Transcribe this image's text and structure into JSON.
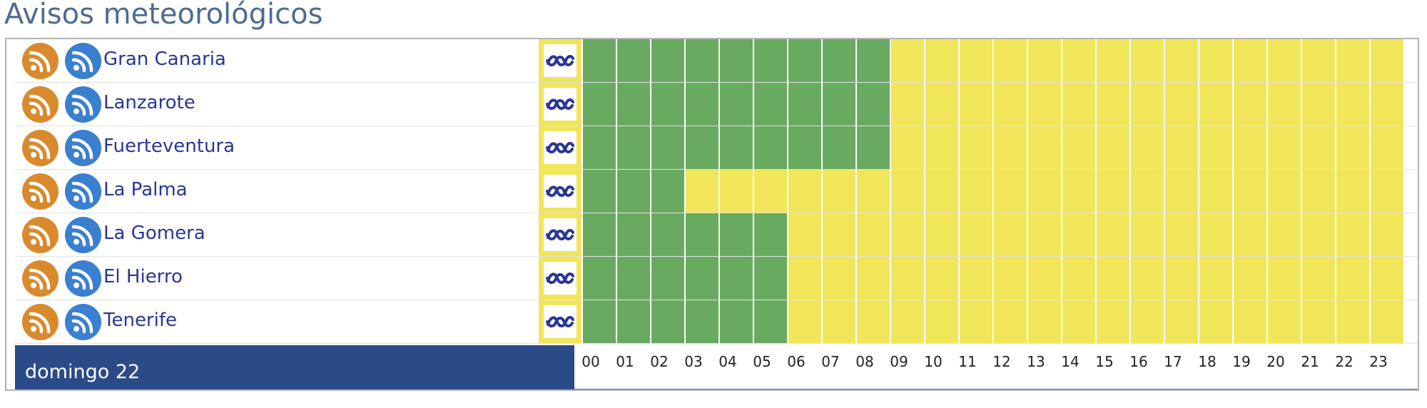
{
  "title": "Avisos meteorológicos",
  "colors": {
    "rss_orange": "#d98a2c",
    "rss_blue": "#3a7fd0",
    "level_green": "#69aa61",
    "level_yellow": "#f1e65a",
    "day_bar": "#2b4a88",
    "island_link": "#2a3598"
  },
  "icons": {
    "rss_primary": "rss-feed-icon",
    "rss_secondary": "rss-feed-icon",
    "coastal": "coastal-wave-icon"
  },
  "hours": [
    "00",
    "01",
    "02",
    "03",
    "04",
    "05",
    "06",
    "07",
    "08",
    "09",
    "10",
    "11",
    "12",
    "13",
    "14",
    "15",
    "16",
    "17",
    "18",
    "19",
    "20",
    "21",
    "22",
    "23"
  ],
  "day_label": "domingo 22",
  "islands": [
    {
      "name": "Gran Canaria",
      "levels": [
        "green",
        "green",
        "green",
        "green",
        "green",
        "green",
        "green",
        "green",
        "green",
        "yellow",
        "yellow",
        "yellow",
        "yellow",
        "yellow",
        "yellow",
        "yellow",
        "yellow",
        "yellow",
        "yellow",
        "yellow",
        "yellow",
        "yellow",
        "yellow",
        "yellow"
      ]
    },
    {
      "name": "Lanzarote",
      "levels": [
        "green",
        "green",
        "green",
        "green",
        "green",
        "green",
        "green",
        "green",
        "green",
        "yellow",
        "yellow",
        "yellow",
        "yellow",
        "yellow",
        "yellow",
        "yellow",
        "yellow",
        "yellow",
        "yellow",
        "yellow",
        "yellow",
        "yellow",
        "yellow",
        "yellow"
      ]
    },
    {
      "name": "Fuerteventura",
      "levels": [
        "green",
        "green",
        "green",
        "green",
        "green",
        "green",
        "green",
        "green",
        "green",
        "yellow",
        "yellow",
        "yellow",
        "yellow",
        "yellow",
        "yellow",
        "yellow",
        "yellow",
        "yellow",
        "yellow",
        "yellow",
        "yellow",
        "yellow",
        "yellow",
        "yellow"
      ]
    },
    {
      "name": "La Palma",
      "levels": [
        "green",
        "green",
        "green",
        "yellow",
        "yellow",
        "yellow",
        "yellow",
        "yellow",
        "yellow",
        "yellow",
        "yellow",
        "yellow",
        "yellow",
        "yellow",
        "yellow",
        "yellow",
        "yellow",
        "yellow",
        "yellow",
        "yellow",
        "yellow",
        "yellow",
        "yellow",
        "yellow"
      ]
    },
    {
      "name": "La Gomera",
      "levels": [
        "green",
        "green",
        "green",
        "green",
        "green",
        "green",
        "yellow",
        "yellow",
        "yellow",
        "yellow",
        "yellow",
        "yellow",
        "yellow",
        "yellow",
        "yellow",
        "yellow",
        "yellow",
        "yellow",
        "yellow",
        "yellow",
        "yellow",
        "yellow",
        "yellow",
        "yellow"
      ]
    },
    {
      "name": "El Hierro",
      "levels": [
        "green",
        "green",
        "green",
        "green",
        "green",
        "green",
        "yellow",
        "yellow",
        "yellow",
        "yellow",
        "yellow",
        "yellow",
        "yellow",
        "yellow",
        "yellow",
        "yellow",
        "yellow",
        "yellow",
        "yellow",
        "yellow",
        "yellow",
        "yellow",
        "yellow",
        "yellow"
      ]
    },
    {
      "name": "Tenerife",
      "levels": [
        "green",
        "green",
        "green",
        "green",
        "green",
        "green",
        "yellow",
        "yellow",
        "yellow",
        "yellow",
        "yellow",
        "yellow",
        "yellow",
        "yellow",
        "yellow",
        "yellow",
        "yellow",
        "yellow",
        "yellow",
        "yellow",
        "yellow",
        "yellow",
        "yellow",
        "yellow"
      ]
    }
  ]
}
